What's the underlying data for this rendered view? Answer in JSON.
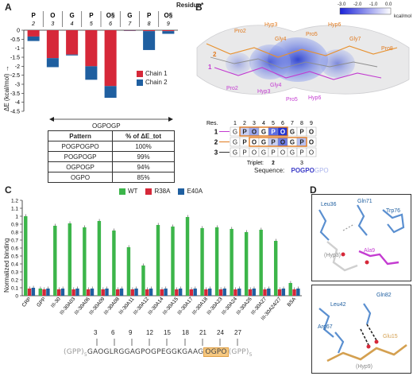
{
  "panels": {
    "a": "A",
    "b": "B",
    "c": "C",
    "d": "D"
  },
  "panel_a": {
    "residue_title": "Residue*",
    "residue_letters": [
      "P",
      "O",
      "G",
      "P",
      "O§",
      "G",
      "P",
      "O§"
    ],
    "residue_numbers": [
      "2",
      "3",
      "4",
      "5",
      "6",
      "7",
      "8",
      "9"
    ],
    "ylabel": "ΔE (kcal/mol) →",
    "legend": [
      {
        "name": "Chain 1",
        "color": "#d62839"
      },
      {
        "name": "Chain 2",
        "color": "#1f5fa0"
      }
    ],
    "bottom_label": "OGPOGP",
    "table_headers": [
      "Pattern",
      "% of ΔE_tot"
    ],
    "table_rows": [
      [
        "POGPOGPO",
        "100%"
      ],
      [
        "POGPOGP",
        "99%"
      ],
      [
        "OGPOGP",
        "94%"
      ],
      [
        "OGPO",
        "85%"
      ]
    ]
  },
  "chart_data": {
    "type": "bar",
    "categories": [
      "P2",
      "O3",
      "G4",
      "P5",
      "O6",
      "G7",
      "P8",
      "O9"
    ],
    "series": [
      {
        "name": "Chain 1",
        "values": [
          -0.35,
          -1.55,
          -1.35,
          -2.0,
          -3.1,
          -0.02,
          -0.05,
          -0.05
        ]
      },
      {
        "name": "Chain 2",
        "values": [
          -0.25,
          -0.5,
          -0.05,
          -0.75,
          -0.65,
          -0.02,
          -1.05,
          -0.15
        ]
      }
    ],
    "ylim": [
      -4.5,
      0
    ],
    "yticks": [
      "0",
      "-0.5",
      "-1",
      "-1.5",
      "-2",
      "-2.5",
      "-3",
      "-3.5",
      "-4",
      "-4.5"
    ]
  },
  "panel_b": {
    "colorbar_ticks": [
      "-3.0",
      "-2.0",
      "-1.0",
      "0.0"
    ],
    "colorbar_unit": "kcal/mol",
    "orange_labels": [
      "Pro2",
      "Hyp3",
      "Gly4",
      "Pro5",
      "Hyp6",
      "Gly7",
      "Pro8"
    ],
    "magenta_labels": [
      "Pro2",
      "Hyp3",
      "Gly4",
      "Pro5",
      "Hyp6"
    ],
    "chain_numbers": [
      "1",
      "2"
    ],
    "res_label": "Res.",
    "res_numbers": [
      "1",
      "2",
      "3",
      "4",
      "5",
      "6",
      "7",
      "8",
      "9"
    ],
    "row1": [
      "G",
      "P",
      "O",
      "G",
      "P",
      "O",
      "G",
      "P",
      "O"
    ],
    "row2": [
      "G",
      "P",
      "O",
      "G",
      "P",
      "O",
      "G",
      "P",
      "O"
    ],
    "row3": [
      "G",
      "P",
      "O",
      "G",
      "P",
      "O",
      "G",
      "P",
      "O"
    ],
    "row_labels": [
      "1",
      "2",
      "3"
    ],
    "triplet_label": "Triplet:",
    "triplet_numbers": [
      "1",
      "2",
      "3"
    ],
    "sequence_label": "Sequence:",
    "sequence_bold": "POGPO",
    "sequence_light": "GPO"
  },
  "panel_c": {
    "ylabel": "Normalized binding",
    "legend": [
      {
        "name": "WT",
        "color": "#3cb54a"
      },
      {
        "name": "R38A",
        "color": "#d62839"
      },
      {
        "name": "E40A",
        "color": "#1f5fa0"
      }
    ],
    "categories": [
      "CRP",
      "GPP",
      "III-30",
      "III-30A03",
      "III-30A06",
      "III-30A09",
      "III-30A08",
      "III-30A11",
      "III-30A12",
      "III-30A14",
      "III-30A15",
      "III-30A17",
      "III-30A18",
      "III-30A23",
      "III-30A24",
      "III-30A26",
      "III-30A27",
      "III-30A24/27",
      "BSA"
    ],
    "wt": [
      1.0,
      0.09,
      0.88,
      0.91,
      0.86,
      0.94,
      0.82,
      0.61,
      0.38,
      0.89,
      0.87,
      0.99,
      0.85,
      0.86,
      0.84,
      0.8,
      0.83,
      0.69,
      0.16
    ],
    "r38a": [
      0.09,
      0.08,
      0.08,
      0.08,
      0.08,
      0.08,
      0.08,
      0.08,
      0.08,
      0.08,
      0.08,
      0.08,
      0.08,
      0.08,
      0.08,
      0.08,
      0.08,
      0.08,
      0.08
    ],
    "e40a": [
      0.1,
      0.09,
      0.09,
      0.09,
      0.09,
      0.09,
      0.09,
      0.09,
      0.09,
      0.09,
      0.09,
      0.09,
      0.09,
      0.09,
      0.09,
      0.09,
      0.09,
      0.09,
      0.09
    ],
    "yticks": [
      "0",
      "0.1",
      "0.2",
      "0.3",
      "0.4",
      "0.5",
      "0.6",
      "0.7",
      "0.8",
      "0.9",
      "1",
      "1.1",
      "1.2"
    ],
    "seq_numbers": [
      "3",
      "6",
      "9",
      "12",
      "15",
      "18",
      "21",
      "24",
      "27"
    ],
    "seq_prefix": "(GPP)",
    "seq_prefix_sub": "5",
    "seq_main": "GAOGLRGGAGPOGPEGGKGAAG",
    "seq_highlight": "OGPO",
    "seq_suffix": "(GPP)",
    "seq_suffix_sub": "5"
  },
  "panel_d": {
    "top_labels": [
      "Leu36",
      "Gln71",
      "Trp76",
      "(Hyp3)",
      "Ala9"
    ],
    "bottom_labels": [
      "Leu42",
      "Gln82",
      "Arg67",
      "Glu15",
      "(Hyp9)"
    ]
  }
}
